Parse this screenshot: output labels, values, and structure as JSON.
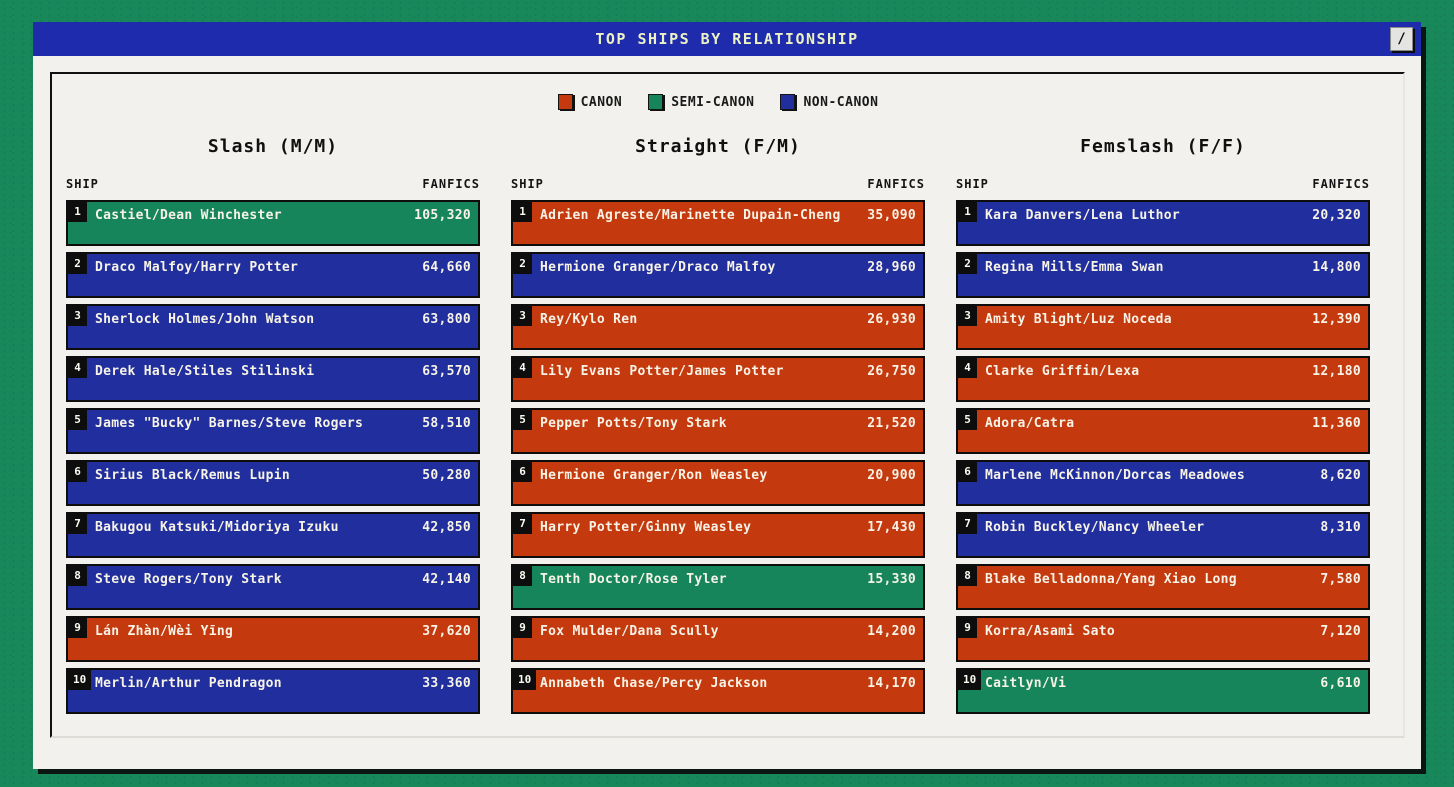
{
  "title_bar": {
    "title": "TOP SHIPS BY RELATIONSHIP",
    "button_label": "/"
  },
  "colors": {
    "CANON": "#c5390f",
    "SEMI-CANON": "#17855c",
    "NON-CANON": "#212f9e",
    "header_blue": "#1e2bac",
    "background_green": "#18875a",
    "card_white": "#f2f1ed",
    "bar_text": "#f7f3e6",
    "title_text": "#ecf2c4"
  },
  "legend": {
    "items": [
      {
        "label": "CANON",
        "key": "CANON"
      },
      {
        "label": "SEMI-CANON",
        "key": "SEMI-CANON"
      },
      {
        "label": "NON-CANON",
        "key": "NON-CANON"
      }
    ]
  },
  "table_headers": {
    "ship": "SHIP",
    "value": "FANFICS"
  },
  "chart_data": {
    "type": "bar",
    "title": "TOP SHIPS BY RELATIONSHIP",
    "legend": [
      "CANON",
      "SEMI-CANON",
      "NON-CANON"
    ],
    "legend_position": "top-center",
    "value_label": "FANFICS",
    "groups": [
      {
        "title": "Slash (M/M)",
        "rows": [
          {
            "rank": 1,
            "ship": "Castiel/Dean Winchester",
            "fanfics": 105320,
            "display": "105,320",
            "status": "SEMI-CANON"
          },
          {
            "rank": 2,
            "ship": "Draco Malfoy/Harry Potter",
            "fanfics": 64660,
            "display": "64,660",
            "status": "NON-CANON"
          },
          {
            "rank": 3,
            "ship": "Sherlock Holmes/John Watson",
            "fanfics": 63800,
            "display": "63,800",
            "status": "NON-CANON"
          },
          {
            "rank": 4,
            "ship": "Derek Hale/Stiles Stilinski",
            "fanfics": 63570,
            "display": "63,570",
            "status": "NON-CANON"
          },
          {
            "rank": 5,
            "ship": "James \"Bucky\" Barnes/Steve Rogers",
            "fanfics": 58510,
            "display": "58,510",
            "status": "NON-CANON"
          },
          {
            "rank": 6,
            "ship": "Sirius Black/Remus Lupin",
            "fanfics": 50280,
            "display": "50,280",
            "status": "NON-CANON"
          },
          {
            "rank": 7,
            "ship": "Bakugou Katsuki/Midoriya Izuku",
            "fanfics": 42850,
            "display": "42,850",
            "status": "NON-CANON"
          },
          {
            "rank": 8,
            "ship": "Steve Rogers/Tony Stark",
            "fanfics": 42140,
            "display": "42,140",
            "status": "NON-CANON"
          },
          {
            "rank": 9,
            "ship": "Lán Zhàn/Wèi Yīng",
            "fanfics": 37620,
            "display": "37,620",
            "status": "CANON"
          },
          {
            "rank": 10,
            "ship": "Merlin/Arthur Pendragon",
            "fanfics": 33360,
            "display": "33,360",
            "status": "NON-CANON"
          }
        ]
      },
      {
        "title": "Straight (F/M)",
        "rows": [
          {
            "rank": 1,
            "ship": "Adrien Agreste/Marinette Dupain-Cheng",
            "fanfics": 35090,
            "display": "35,090",
            "status": "CANON"
          },
          {
            "rank": 2,
            "ship": "Hermione Granger/Draco Malfoy",
            "fanfics": 28960,
            "display": "28,960",
            "status": "NON-CANON"
          },
          {
            "rank": 3,
            "ship": "Rey/Kylo Ren",
            "fanfics": 26930,
            "display": "26,930",
            "status": "CANON"
          },
          {
            "rank": 4,
            "ship": "Lily Evans Potter/James Potter",
            "fanfics": 26750,
            "display": "26,750",
            "status": "CANON"
          },
          {
            "rank": 5,
            "ship": "Pepper Potts/Tony Stark",
            "fanfics": 21520,
            "display": "21,520",
            "status": "CANON"
          },
          {
            "rank": 6,
            "ship": "Hermione Granger/Ron Weasley",
            "fanfics": 20900,
            "display": "20,900",
            "status": "CANON"
          },
          {
            "rank": 7,
            "ship": "Harry Potter/Ginny Weasley",
            "fanfics": 17430,
            "display": "17,430",
            "status": "CANON"
          },
          {
            "rank": 8,
            "ship": "Tenth Doctor/Rose Tyler",
            "fanfics": 15330,
            "display": "15,330",
            "status": "SEMI-CANON"
          },
          {
            "rank": 9,
            "ship": "Fox Mulder/Dana Scully",
            "fanfics": 14200,
            "display": "14,200",
            "status": "CANON"
          },
          {
            "rank": 10,
            "ship": "Annabeth Chase/Percy Jackson",
            "fanfics": 14170,
            "display": "14,170",
            "status": "CANON"
          }
        ]
      },
      {
        "title": "Femslash (F/F)",
        "rows": [
          {
            "rank": 1,
            "ship": "Kara Danvers/Lena Luthor",
            "fanfics": 20320,
            "display": "20,320",
            "status": "NON-CANON"
          },
          {
            "rank": 2,
            "ship": "Regina Mills/Emma Swan",
            "fanfics": 14800,
            "display": "14,800",
            "status": "NON-CANON"
          },
          {
            "rank": 3,
            "ship": "Amity Blight/Luz Noceda",
            "fanfics": 12390,
            "display": "12,390",
            "status": "CANON"
          },
          {
            "rank": 4,
            "ship": "Clarke Griffin/Lexa",
            "fanfics": 12180,
            "display": "12,180",
            "status": "CANON"
          },
          {
            "rank": 5,
            "ship": "Adora/Catra",
            "fanfics": 11360,
            "display": "11,360",
            "status": "CANON"
          },
          {
            "rank": 6,
            "ship": "Marlene McKinnon/Dorcas Meadowes",
            "fanfics": 8620,
            "display": "8,620",
            "status": "NON-CANON"
          },
          {
            "rank": 7,
            "ship": "Robin Buckley/Nancy Wheeler",
            "fanfics": 8310,
            "display": "8,310",
            "status": "NON-CANON"
          },
          {
            "rank": 8,
            "ship": "Blake Belladonna/Yang Xiao Long",
            "fanfics": 7580,
            "display": "7,580",
            "status": "CANON"
          },
          {
            "rank": 9,
            "ship": "Korra/Asami Sato",
            "fanfics": 7120,
            "display": "7,120",
            "status": "CANON"
          },
          {
            "rank": 10,
            "ship": "Caitlyn/Vi",
            "fanfics": 6610,
            "display": "6,610",
            "status": "SEMI-CANON"
          }
        ]
      }
    ]
  }
}
